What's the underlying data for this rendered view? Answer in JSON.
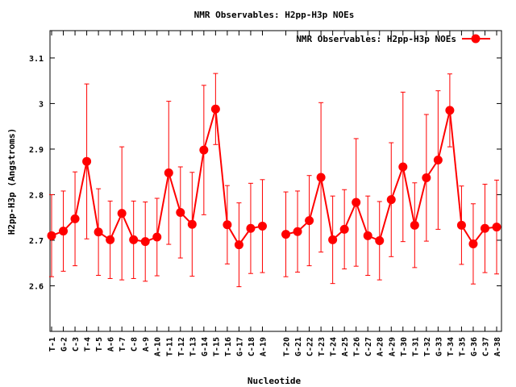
{
  "chart_data": {
    "type": "line",
    "title": "NMR Observables: H2pp-H3p NOEs",
    "xlabel": "Nucleotide",
    "ylabel": "H2pp-H3p (Angstroms)",
    "ylim": [
      2.5,
      3.16
    ],
    "yticks": [
      "2.6",
      "2.7",
      "2.8",
      "2.9",
      "3",
      "3.1"
    ],
    "ytick_values": [
      2.6,
      2.7,
      2.8,
      2.9,
      3.0,
      3.1
    ],
    "grid": false,
    "legend_position": "top-right",
    "color": "#ff0000",
    "series": [
      {
        "name": "NMR Observables: H2pp-H3p NOEs",
        "points": [
          {
            "label": "T-1",
            "y": 2.71,
            "err": 0.09
          },
          {
            "label": "G-2",
            "y": 2.72,
            "err": 0.088
          },
          {
            "label": "C-3",
            "y": 2.747,
            "err": 0.103
          },
          {
            "label": "T-4",
            "y": 2.873,
            "err": 0.17
          },
          {
            "label": "T-5",
            "y": 2.718,
            "err": 0.095
          },
          {
            "label": "A-6",
            "y": 2.701,
            "err": 0.085
          },
          {
            "label": "T-7",
            "y": 2.759,
            "err": 0.146
          },
          {
            "label": "C-8",
            "y": 2.701,
            "err": 0.085
          },
          {
            "label": "A-9",
            "y": 2.697,
            "err": 0.087
          },
          {
            "label": "A-10",
            "y": 2.707,
            "err": 0.085
          },
          {
            "label": "T-11",
            "y": 2.848,
            "err": 0.157
          },
          {
            "label": "T-12",
            "y": 2.761,
            "err": 0.1
          },
          {
            "label": "T-13",
            "y": 2.735,
            "err": 0.114
          },
          {
            "label": "G-14",
            "y": 2.898,
            "err": 0.142
          },
          {
            "label": "T-15",
            "y": 2.988,
            "err": 0.078
          },
          {
            "label": "T-16",
            "y": 2.734,
            "err": 0.086
          },
          {
            "label": "G-17",
            "y": 2.69,
            "err": 0.092
          },
          {
            "label": "C-18",
            "y": 2.726,
            "err": 0.099
          },
          {
            "label": "A-19",
            "y": 2.731,
            "err": 0.102
          },
          {
            "label": "T-20",
            "y": 2.713,
            "err": 0.093
          },
          {
            "label": "G-21",
            "y": 2.719,
            "err": 0.089
          },
          {
            "label": "C-22",
            "y": 2.743,
            "err": 0.099
          },
          {
            "label": "T-23",
            "y": 2.838,
            "err": 0.164
          },
          {
            "label": "T-24",
            "y": 2.701,
            "err": 0.096
          },
          {
            "label": "A-25",
            "y": 2.724,
            "err": 0.087
          },
          {
            "label": "T-26",
            "y": 2.783,
            "err": 0.14
          },
          {
            "label": "C-27",
            "y": 2.71,
            "err": 0.087
          },
          {
            "label": "A-28",
            "y": 2.699,
            "err": 0.086
          },
          {
            "label": "A-29",
            "y": 2.789,
            "err": 0.125
          },
          {
            "label": "T-30",
            "y": 2.861,
            "err": 0.164
          },
          {
            "label": "T-31",
            "y": 2.733,
            "err": 0.093
          },
          {
            "label": "T-32",
            "y": 2.837,
            "err": 0.139
          },
          {
            "label": "G-33",
            "y": 2.876,
            "err": 0.152
          },
          {
            "label": "T-34",
            "y": 2.985,
            "err": 0.08
          },
          {
            "label": "T-35",
            "y": 2.733,
            "err": 0.086
          },
          {
            "label": "G-36",
            "y": 2.692,
            "err": 0.088
          },
          {
            "label": "C-37",
            "y": 2.726,
            "err": 0.097
          },
          {
            "label": "A-38",
            "y": 2.729,
            "err": 0.103
          }
        ]
      }
    ]
  }
}
